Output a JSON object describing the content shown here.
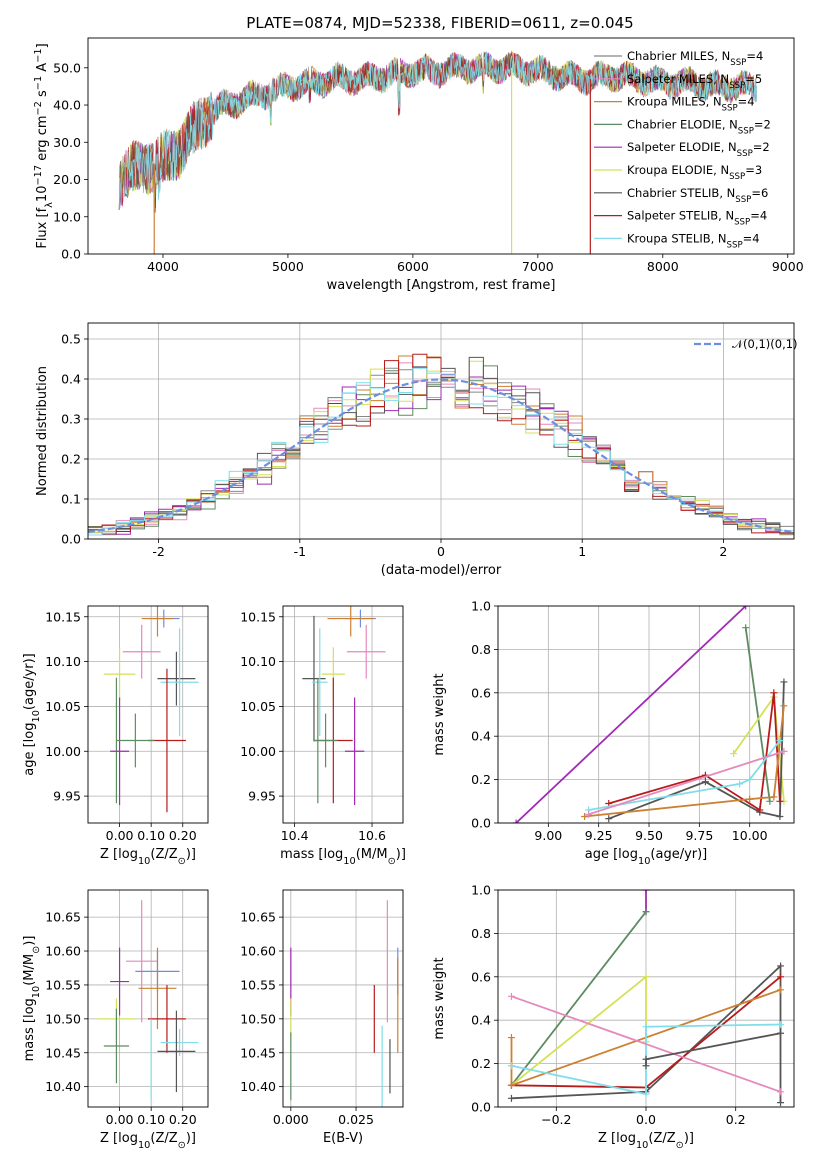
{
  "figure": {
    "title": "PLATE=0874, MJD=52338, FIBERID=0611, z=0.045"
  },
  "colors": {
    "c1": "#888888",
    "c2": "#e589bd",
    "c3": "#cd7f32",
    "c4": "#5e8c61",
    "c5": "#a02ab5",
    "c6": "#d4e157",
    "c7": "#555555",
    "c8": "#b71c1c",
    "c9": "#80deea",
    "c10": "#6e8fe0"
  },
  "chart_data": [
    {
      "id": "spectrum",
      "type": "line",
      "xlabel": "wavelength [Angstrom, rest frame]",
      "ylabel": "Flux [f$_\\lambda$10$^{-17}$ erg cm$^{-2}$ s$^{-1}$ A$^{-1}$]",
      "xlim": [
        3400,
        9050
      ],
      "ylim": [
        0,
        58
      ],
      "xticks": [
        4000,
        5000,
        6000,
        7000,
        8000,
        9000
      ],
      "yticks": [
        0,
        10,
        20,
        30,
        40,
        50
      ],
      "grid": false,
      "legend": "top-right",
      "continuum_x": [
        3650,
        3700,
        3800,
        3900,
        4000,
        4100,
        4200,
        4300,
        4400,
        4500,
        4700,
        4900,
        5000,
        5200,
        5400,
        5600,
        5800,
        6000,
        6200,
        6400,
        6600,
        6800,
        7000,
        7200,
        7400,
        7600,
        7800,
        8000,
        8200,
        8400,
        8600,
        8750
      ],
      "continuum_y": [
        20,
        22,
        23,
        24,
        25,
        27,
        31,
        35,
        38,
        40,
        42,
        44,
        45,
        46,
        47,
        47,
        48,
        49,
        49,
        50,
        50,
        50,
        49,
        48,
        47,
        48,
        47,
        46,
        46,
        45,
        45,
        45
      ],
      "series": [
        {
          "name": "Chabrier MILES, N$_{SSP}$=4",
          "color": "#888888"
        },
        {
          "name": "Salpeter MILES, N$_{SSP}$=5",
          "color": "#e589bd"
        },
        {
          "name": "Kroupa MILES, N$_{SSP}$=4",
          "color": "#cd7f32"
        },
        {
          "name": "Chabrier ELODIE, N$_{SSP}$=2",
          "color": "#5e8c61"
        },
        {
          "name": "Salpeter ELODIE, N$_{SSP}$=2",
          "color": "#a02ab5"
        },
        {
          "name": "Kroupa ELODIE, N$_{SSP}$=3",
          "color": "#d4e157"
        },
        {
          "name": "Chabrier STELIB, N$_{SSP}$=6",
          "color": "#555555"
        },
        {
          "name": "Salpeter STELIB, N$_{SSP}$=4",
          "color": "#b71c1c"
        },
        {
          "name": "Kroupa STELIB, N$_{SSP}$=4",
          "color": "#80deea"
        }
      ]
    },
    {
      "id": "residuals",
      "type": "line",
      "xlabel": "(data-model)/error",
      "ylabel": "Normed distribution",
      "xlim": [
        -2.5,
        2.5
      ],
      "ylim": [
        0,
        0.54
      ],
      "xticks": [
        -2,
        -1,
        0,
        1,
        2
      ],
      "yticks": [
        0.0,
        0.1,
        0.2,
        0.3,
        0.4,
        0.5
      ],
      "grid": true,
      "legend": "top-right",
      "reference": {
        "name": "$\\mathcal{N}(0,1)$",
        "color": "#6e8fe0"
      },
      "bin_width": 0.1,
      "colors": [
        "#888888",
        "#e589bd",
        "#cd7f32",
        "#5e8c61",
        "#a02ab5",
        "#d4e157",
        "#555555",
        "#b71c1c",
        "#80deea"
      ]
    },
    {
      "id": "age_vs_Z",
      "type": "scatter",
      "xlabel": "Z [log$_{10}$(Z/Z$_\\odot$)]",
      "ylabel": "age  [log$_{10}$(age/yr)]",
      "xlim": [
        -0.1,
        0.28
      ],
      "ylim": [
        9.92,
        10.162
      ],
      "xticks": [
        0.0,
        0.1,
        0.2
      ],
      "xticklabels": [
        "0.00",
        "0.10",
        "0.20"
      ],
      "yticks": [
        9.95,
        10.0,
        10.05,
        10.1,
        10.15
      ],
      "yticklabels": [
        "9.95",
        "10.00",
        "10.05",
        "10.10",
        "10.15"
      ],
      "grid": true,
      "points": [
        {
          "x": 0.14,
          "xerr": 0.05,
          "y": 10.148,
          "yerr": 0.01,
          "color": "#6e8fe0"
        },
        {
          "x": 0.12,
          "xerr": 0.05,
          "y": 10.148,
          "yerr": 0.02,
          "color": "#cd7f32"
        },
        {
          "x": 0.07,
          "xerr": 0.06,
          "y": 10.111,
          "yerr": 0.03,
          "color": "#e589bd"
        },
        {
          "x": 0.0,
          "xerr": 0.05,
          "y": 10.086,
          "yerr": 0.03,
          "color": "#d4e157"
        },
        {
          "x": 0.18,
          "xerr": 0.06,
          "y": 10.081,
          "yerr": 0.03,
          "color": "#555555"
        },
        {
          "x": 0.19,
          "xerr": 0.06,
          "y": 10.077,
          "yerr": 0.06,
          "color": "#80deea"
        },
        {
          "x": 0.15,
          "xerr": 0.06,
          "y": 10.012,
          "yerr": 0.08,
          "color": "#b71c1c"
        },
        {
          "x": -0.01,
          "xerr": 0.0,
          "y": 10.012,
          "yerr": 0.07,
          "color": "#5e8c61"
        },
        {
          "x": 0.0,
          "xerr": 0.03,
          "y": 10.0,
          "yerr": 0.06,
          "color": "#a02ab5"
        },
        {
          "x": 0.05,
          "xerr": 0.06,
          "y": 10.012,
          "yerr": 0.03,
          "color": "#5e8c61"
        }
      ]
    },
    {
      "id": "age_vs_mass",
      "type": "scatter",
      "xlabel": "mass [log$_{10}$(M/M$_\\odot$)]",
      "ylabel": "",
      "xlim": [
        10.37,
        10.68
      ],
      "ylim": [
        9.92,
        10.162
      ],
      "xticks": [
        10.4,
        10.6
      ],
      "xticklabels": [
        "10.4",
        "10.6"
      ],
      "yticks": [
        9.95,
        10.0,
        10.05,
        10.1,
        10.15
      ],
      "yticklabels": [
        "9.95",
        "10.00",
        "10.05",
        "10.10",
        "10.15"
      ],
      "grid": true,
      "points": [
        {
          "x": 10.57,
          "xerr": 0.04,
          "y": 10.148,
          "yerr": 0.01,
          "color": "#6e8fe0"
        },
        {
          "x": 10.545,
          "xerr": 0.06,
          "y": 10.148,
          "yerr": 0.02,
          "color": "#cd7f32"
        },
        {
          "x": 10.585,
          "xerr": 0.05,
          "y": 10.111,
          "yerr": 0.03,
          "color": "#e589bd"
        },
        {
          "x": 10.5,
          "xerr": 0.03,
          "y": 10.086,
          "yerr": 0.03,
          "color": "#d4e157"
        },
        {
          "x": 10.45,
          "xerr": 0.03,
          "y": 10.081,
          "yerr": 0.07,
          "color": "#555555"
        },
        {
          "x": 10.465,
          "xerr": 0.02,
          "y": 10.077,
          "yerr": 0.06,
          "color": "#80deea"
        },
        {
          "x": 10.5,
          "xerr": 0.05,
          "y": 10.012,
          "yerr": 0.07,
          "color": "#b71c1c"
        },
        {
          "x": 10.46,
          "xerr": 0.0,
          "y": 10.012,
          "yerr": 0.07,
          "color": "#5e8c61"
        },
        {
          "x": 10.555,
          "xerr": 0.025,
          "y": 10.0,
          "yerr": 0.06,
          "color": "#a02ab5"
        },
        {
          "x": 10.48,
          "xerr": 0.03,
          "y": 10.012,
          "yerr": 0.03,
          "color": "#5e8c61"
        }
      ]
    },
    {
      "id": "weight_vs_age",
      "type": "line",
      "xlabel": "age  [log$_{10}$(age/yr)]",
      "ylabel": "mass weight",
      "xlim": [
        8.75,
        10.22
      ],
      "ylim": [
        0.0,
        1.0
      ],
      "xticks": [
        9.0,
        9.5,
        10.0
      ],
      "xticklabels": [
        "9.00",
        "9.25",
        "9.50",
        "9.75",
        "10.00"
      ],
      "xticks_all": [
        9.0,
        9.25,
        9.5,
        9.75,
        10.0
      ],
      "yticks": [
        0.0,
        0.2,
        0.4,
        0.6,
        0.8,
        1.0
      ],
      "grid": true,
      "series": [
        {
          "color": "#a02ab5",
          "x": [
            8.84,
            9.98
          ],
          "y": [
            0.0,
            1.0
          ]
        },
        {
          "color": "#5e8c61",
          "x": [
            9.98,
            10.1
          ],
          "y": [
            0.9,
            0.1
          ]
        },
        {
          "color": "#d4e157",
          "x": [
            9.92,
            10.12,
            10.17
          ],
          "y": [
            0.32,
            0.58,
            0.1
          ]
        },
        {
          "color": "#555555",
          "x": [
            9.3,
            9.78,
            10.05,
            10.15,
            10.17
          ],
          "y": [
            0.02,
            0.19,
            0.05,
            0.03,
            0.65
          ]
        },
        {
          "color": "#b71c1c",
          "x": [
            9.3,
            9.78,
            10.05,
            10.12,
            10.15
          ],
          "y": [
            0.09,
            0.22,
            0.06,
            0.6,
            0.1
          ]
        },
        {
          "color": "#cd7f32",
          "x": [
            9.18,
            10.0,
            10.12,
            10.17
          ],
          "y": [
            0.03,
            0.11,
            0.12,
            0.54
          ]
        },
        {
          "color": "#80deea",
          "x": [
            9.2,
            9.95,
            10.0,
            10.15
          ],
          "y": [
            0.06,
            0.18,
            0.2,
            0.38
          ]
        },
        {
          "color": "#e589bd",
          "x": [
            9.2,
            10.17
          ],
          "y": [
            0.04,
            0.33
          ]
        }
      ]
    },
    {
      "id": "mass_vs_Z",
      "type": "scatter",
      "xlabel": "Z [log$_{10}$(Z/Z$_\\odot$)]",
      "ylabel": "mass [log$_{10}$(M/M$_\\odot$)]",
      "xlim": [
        -0.1,
        0.28
      ],
      "ylim": [
        10.37,
        10.69
      ],
      "xticks": [
        0.0,
        0.1,
        0.2
      ],
      "xticklabels": [
        "0.00",
        "0.10",
        "0.20"
      ],
      "yticks": [
        10.4,
        10.45,
        10.5,
        10.55,
        10.6,
        10.65
      ],
      "yticklabels": [
        "10.40",
        "10.45",
        "10.50",
        "10.55",
        "10.60",
        "10.65"
      ],
      "grid": true,
      "points": [
        {
          "x": 0.07,
          "xerr": 0.05,
          "y": 10.585,
          "yerr": 0.09,
          "color": "#e589bd"
        },
        {
          "x": 0.12,
          "xerr": 0.07,
          "y": 10.57,
          "yerr": 0.03,
          "color": "#6e8fe0"
        },
        {
          "x": 0.0,
          "xerr": 0.03,
          "y": 10.555,
          "yerr": 0.05,
          "color": "#a02ab5"
        },
        {
          "x": 0.12,
          "xerr": 0.06,
          "y": 10.545,
          "yerr": 0.06,
          "color": "#cd7f32"
        },
        {
          "x": 0.15,
          "xerr": 0.06,
          "y": 10.5,
          "yerr": 0.05,
          "color": "#b71c1c"
        },
        {
          "x": -0.01,
          "xerr": 0.06,
          "y": 10.5,
          "yerr": 0.03,
          "color": "#d4e157"
        },
        {
          "x": 0.19,
          "xerr": 0.06,
          "y": 10.465,
          "yerr": 0.02,
          "color": "#80deea"
        },
        {
          "x": 0.18,
          "xerr": 0.06,
          "y": 10.452,
          "yerr": 0.06,
          "color": "#555555"
        },
        {
          "x": -0.01,
          "xerr": 0.04,
          "y": 10.46,
          "yerr": 0.055,
          "color": "#5e8c61"
        },
        {
          "x": 0.1,
          "xerr": 0.0,
          "y": 10.44,
          "yerr": 0.06,
          "color": "#80deea"
        }
      ]
    },
    {
      "id": "mass_vs_EBV",
      "type": "scatter",
      "xlabel": "E(B-V)",
      "ylabel": "",
      "xlim": [
        -0.003,
        0.043
      ],
      "ylim": [
        10.37,
        10.69
      ],
      "xticks": [
        0.0,
        0.025
      ],
      "xticklabels": [
        "0.000",
        "0.025"
      ],
      "yticks": [
        10.4,
        10.45,
        10.5,
        10.55,
        10.6,
        10.65
      ],
      "yticklabels": [
        "10.40",
        "10.45",
        "10.50",
        "10.55",
        "10.60",
        "10.65"
      ],
      "grid": true,
      "points": [
        {
          "x": 0.037,
          "xerr": 0,
          "y": 10.585,
          "yerr": 0.09,
          "color": "#e589bd"
        },
        {
          "x": 0.041,
          "xerr": 0,
          "y": 10.57,
          "yerr": 0.035,
          "color": "#6e8fe0"
        },
        {
          "x": 0.0,
          "xerr": 0,
          "y": 10.555,
          "yerr": 0.05,
          "color": "#a02ab5"
        },
        {
          "x": 0.041,
          "xerr": 0,
          "y": 10.52,
          "yerr": 0.07,
          "color": "#cd7f32"
        },
        {
          "x": 0.032,
          "xerr": 0,
          "y": 10.5,
          "yerr": 0.05,
          "color": "#b71c1c"
        },
        {
          "x": 0.0,
          "xerr": 0,
          "y": 10.5,
          "yerr": 0.03,
          "color": "#d4e157"
        },
        {
          "x": 0.035,
          "xerr": 0,
          "y": 10.43,
          "yerr": 0.06,
          "color": "#80deea"
        },
        {
          "x": 0.038,
          "xerr": 0,
          "y": 10.43,
          "yerr": 0.04,
          "color": "#555555"
        },
        {
          "x": 0.0,
          "xerr": 0,
          "y": 10.43,
          "yerr": 0.05,
          "color": "#5e8c61"
        }
      ]
    },
    {
      "id": "weight_vs_Z",
      "type": "line",
      "xlabel": "Z [log$_{10}$(Z/Z$_\\odot$)]",
      "ylabel": "mass weight",
      "xlim": [
        -0.33,
        0.33
      ],
      "ylim": [
        0.0,
        1.0
      ],
      "xticks": [
        -0.2,
        0.0,
        0.2
      ],
      "xticklabels": [
        "−0.2",
        "0.0",
        "0.2"
      ],
      "yticks": [
        0.0,
        0.2,
        0.4,
        0.6,
        0.8,
        1.0
      ],
      "grid": true,
      "series": [
        {
          "color": "#a02ab5",
          "x": [
            0.0,
            0.0
          ],
          "y": [
            1.0,
            0.9
          ]
        },
        {
          "color": "#5e8c61",
          "x": [
            -0.3,
            0.0
          ],
          "y": [
            0.1,
            0.9
          ]
        },
        {
          "color": "#d4e157",
          "x": [
            -0.3,
            0.0,
            0.0
          ],
          "y": [
            0.1,
            0.6,
            0.3
          ]
        },
        {
          "color": "#555555",
          "x": [
            -0.3,
            0.0,
            0.3,
            0.3
          ],
          "y": [
            0.04,
            0.07,
            0.65,
            0.02
          ]
        },
        {
          "color": "#b71c1c",
          "x": [
            -0.3,
            0.0,
            0.3
          ],
          "y": [
            0.1,
            0.09,
            0.6
          ]
        },
        {
          "color": "#cd7f32",
          "x": [
            -0.3,
            -0.3,
            0.3
          ],
          "y": [
            0.32,
            0.1,
            0.54
          ]
        },
        {
          "color": "#80deea",
          "x": [
            -0.3,
            0.0,
            0.0,
            0.3
          ],
          "y": [
            0.19,
            0.06,
            0.37,
            0.38
          ]
        },
        {
          "color": "#e589bd",
          "x": [
            -0.3,
            0.3
          ],
          "y": [
            0.51,
            0.07
          ]
        },
        {
          "color": "#555555",
          "x": [
            0.0,
            0.0,
            0.3
          ],
          "y": [
            0.19,
            0.22,
            0.34
          ]
        }
      ]
    }
  ]
}
